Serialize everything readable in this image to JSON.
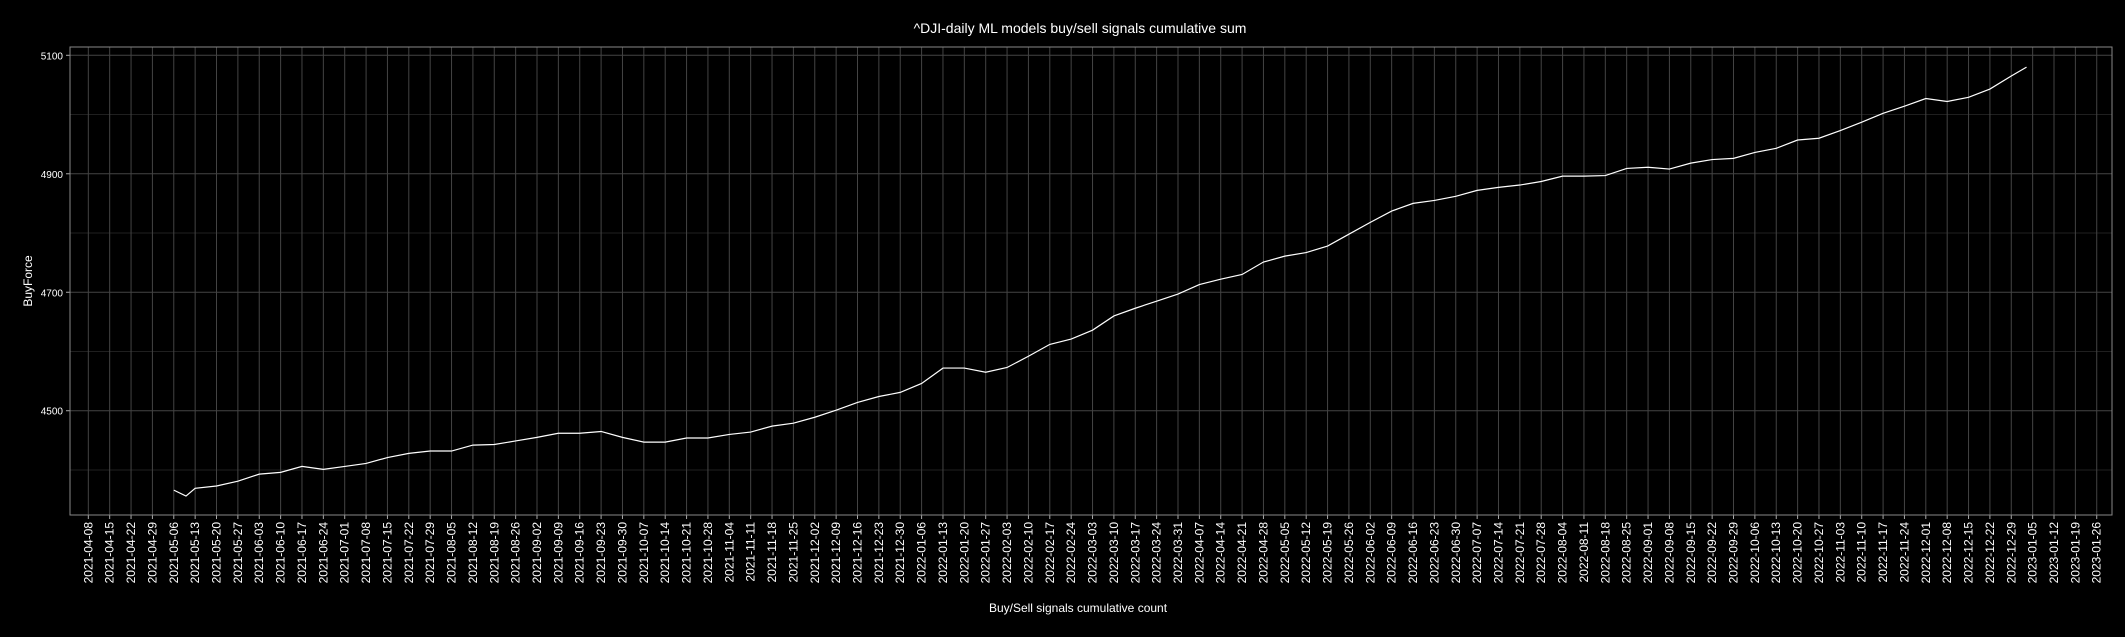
{
  "chart_data": {
    "type": "line",
    "title": "^DJI-daily ML models buy/sell signals cumulative sum",
    "x_label": "Buy/Sell signals cumulative count",
    "y_label": "BuyForce",
    "color": "#ffffff",
    "grid": true,
    "x": [
      "2021-05-06",
      "2021-05-10",
      "2021-05-13",
      "2021-05-20",
      "2021-05-27",
      "2021-06-03",
      "2021-06-10",
      "2021-06-17",
      "2021-06-24",
      "2021-07-01",
      "2021-07-08",
      "2021-07-15",
      "2021-07-22",
      "2021-07-29",
      "2021-08-05",
      "2021-08-12",
      "2021-08-19",
      "2021-08-26",
      "2021-09-02",
      "2021-09-09",
      "2021-09-16",
      "2021-09-23",
      "2021-09-30",
      "2021-10-07",
      "2021-10-14",
      "2021-10-21",
      "2021-10-28",
      "2021-11-04",
      "2021-11-11",
      "2021-11-18",
      "2021-11-25",
      "2021-12-02",
      "2021-12-09",
      "2021-12-16",
      "2021-12-23",
      "2021-12-30",
      "2022-01-06",
      "2022-01-13",
      "2022-01-20",
      "2022-01-27",
      "2022-02-03",
      "2022-02-10",
      "2022-02-17",
      "2022-02-24",
      "2022-03-03",
      "2022-03-10",
      "2022-03-17",
      "2022-03-24",
      "2022-03-31",
      "2022-04-07",
      "2022-04-14",
      "2022-04-21",
      "2022-04-28",
      "2022-05-05",
      "2022-05-12",
      "2022-05-19",
      "2022-05-26",
      "2022-06-02",
      "2022-06-09",
      "2022-06-16",
      "2022-06-23",
      "2022-06-30",
      "2022-07-07",
      "2022-07-14",
      "2022-07-21",
      "2022-07-28",
      "2022-08-04",
      "2022-08-11",
      "2022-08-18",
      "2022-08-25",
      "2022-09-01",
      "2022-09-08",
      "2022-09-15",
      "2022-09-22",
      "2022-09-29",
      "2022-10-06",
      "2022-10-13",
      "2022-10-20",
      "2022-10-27",
      "2022-11-03",
      "2022-11-10",
      "2022-11-17",
      "2022-11-24",
      "2022-12-01",
      "2022-12-08",
      "2022-12-15",
      "2022-12-22",
      "2022-12-29",
      "2023-01-03"
    ],
    "values": [
      4366,
      4356,
      4369,
      4373,
      4381,
      4393,
      4396,
      4406,
      4401,
      4406,
      4411,
      4421,
      4428,
      4432,
      4432,
      4442,
      4443,
      4449,
      4455,
      4462,
      4462,
      4465,
      4455,
      4447,
      4447,
      4454,
      4454,
      4460,
      4464,
      4474,
      4479,
      4489,
      4501,
      4514,
      4524,
      4531,
      4546,
      4572,
      4572,
      4565,
      4573,
      4592,
      4612,
      4621,
      4636,
      4660,
      4673,
      4685,
      4697,
      4713,
      4722,
      4730,
      4751,
      4761,
      4767,
      4778,
      4798,
      4818,
      4837,
      4850,
      4855,
      4862,
      4872,
      4877,
      4881,
      4887,
      4896,
      4896,
      4897,
      4909,
      4911,
      4908,
      4918,
      4924,
      4926,
      4936,
      4943,
      4957,
      4960,
      4973,
      4987,
      5002,
      5014,
      5027,
      5022,
      5029,
      5043,
      5065,
      5080
    ],
    "xlim": [
      "2021-04-02",
      "2023-01-31"
    ],
    "xticks": [
      "2021-04-08",
      "2021-04-15",
      "2021-04-22",
      "2021-04-29",
      "2021-05-06",
      "2021-05-13",
      "2021-05-20",
      "2021-05-27",
      "2021-06-03",
      "2021-06-10",
      "2021-06-17",
      "2021-06-24",
      "2021-07-01",
      "2021-07-08",
      "2021-07-15",
      "2021-07-22",
      "2021-07-29",
      "2021-08-05",
      "2021-08-12",
      "2021-08-19",
      "2021-08-26",
      "2021-09-02",
      "2021-09-09",
      "2021-09-16",
      "2021-09-23",
      "2021-09-30",
      "2021-10-07",
      "2021-10-14",
      "2021-10-21",
      "2021-10-28",
      "2021-11-04",
      "2021-11-11",
      "2021-11-18",
      "2021-11-25",
      "2021-12-02",
      "2021-12-09",
      "2021-12-16",
      "2021-12-23",
      "2021-12-30",
      "2022-01-06",
      "2022-01-13",
      "2022-01-20",
      "2022-01-27",
      "2022-02-03",
      "2022-02-10",
      "2022-02-17",
      "2022-02-24",
      "2022-03-03",
      "2022-03-10",
      "2022-03-17",
      "2022-03-24",
      "2022-03-31",
      "2022-04-07",
      "2022-04-14",
      "2022-04-21",
      "2022-04-28",
      "2022-05-05",
      "2022-05-12",
      "2022-05-19",
      "2022-05-26",
      "2022-06-02",
      "2022-06-09",
      "2022-06-16",
      "2022-06-23",
      "2022-06-30",
      "2022-07-07",
      "2022-07-14",
      "2022-07-21",
      "2022-07-28",
      "2022-08-04",
      "2022-08-11",
      "2022-08-18",
      "2022-08-25",
      "2022-09-01",
      "2022-09-08",
      "2022-09-15",
      "2022-09-22",
      "2022-09-29",
      "2022-10-06",
      "2022-10-13",
      "2022-10-20",
      "2022-10-27",
      "2022-11-03",
      "2022-11-10",
      "2022-11-17",
      "2022-11-24",
      "2022-12-01",
      "2022-12-08",
      "2022-12-15",
      "2022-12-22",
      "2022-12-29",
      "2023-01-05",
      "2023-01-12",
      "2023-01-19",
      "2023-01-26"
    ],
    "ylim": [
      4324,
      5114
    ],
    "yticks": [
      4500,
      4700,
      4900,
      5100
    ]
  }
}
